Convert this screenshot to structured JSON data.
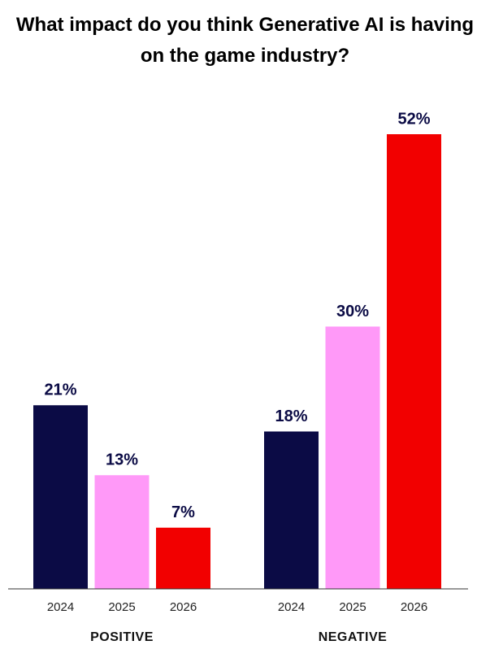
{
  "chart_data": {
    "type": "bar",
    "title": "What impact do you think Generative AI is having on the game industry?",
    "categories": [
      "POSITIVE",
      "NEGATIVE"
    ],
    "series": [
      {
        "name": "2024",
        "color": "#0b0b45",
        "values": [
          21,
          18
        ],
        "value_labels": [
          "21%",
          "18%"
        ]
      },
      {
        "name": "2025",
        "color": "#ff99f8",
        "values": [
          13,
          30
        ],
        "value_labels": [
          "13%",
          "30%"
        ]
      },
      {
        "name": "2026",
        "color": "#f20000",
        "values": [
          7,
          52
        ],
        "value_labels": [
          "7%",
          "52%"
        ]
      }
    ]
  }
}
